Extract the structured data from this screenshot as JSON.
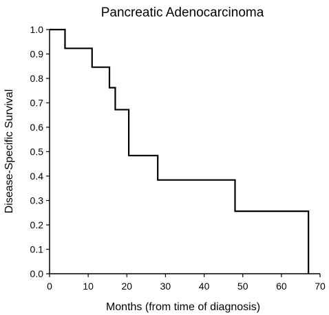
{
  "chart_data": {
    "type": "line",
    "subtype": "kaplan-meier step",
    "title": "Pancreatic Adenocarcinoma",
    "xlabel": "Months (from time of diagnosis)",
    "ylabel": "Disease-Specific Survival",
    "xlim": [
      0,
      70
    ],
    "ylim": [
      0,
      1.0
    ],
    "xticks": [
      0,
      10,
      20,
      30,
      40,
      50,
      60,
      70
    ],
    "yticks": [
      0.0,
      0.1,
      0.2,
      0.3,
      0.4,
      0.5,
      0.6,
      0.7,
      0.8,
      0.9,
      1.0
    ],
    "xtick_labels": [
      "0",
      "10",
      "20",
      "30",
      "40",
      "50",
      "60",
      "70"
    ],
    "ytick_labels": [
      "0.0",
      "0.1",
      "0.2",
      "0.3",
      "0.4",
      "0.5",
      "0.6",
      "0.7",
      "0.8",
      "0.9",
      "1.0"
    ],
    "grid": false,
    "legend": "none",
    "line_color": "#000000",
    "series": [
      {
        "x": [
          0,
          4,
          11,
          15.5,
          17,
          20.5,
          28,
          48,
          67
        ],
        "y": [
          1.0,
          0.923,
          0.846,
          0.762,
          0.672,
          0.484,
          0.384,
          0.256,
          0.0
        ]
      }
    ]
  }
}
